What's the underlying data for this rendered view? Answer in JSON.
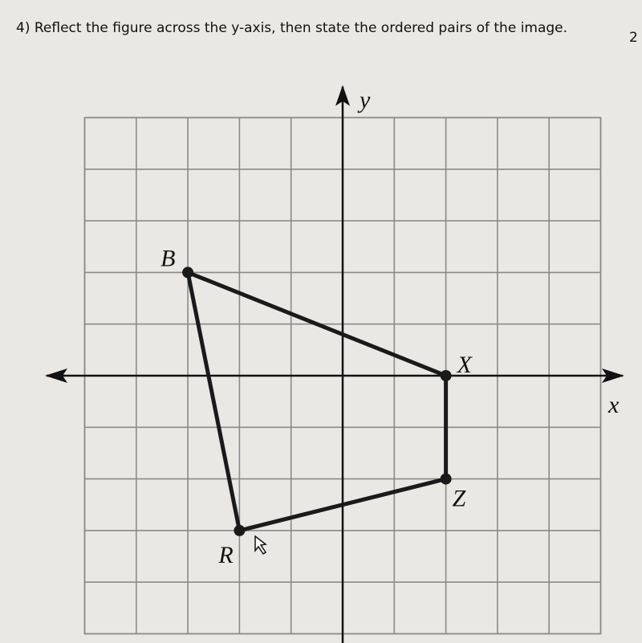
{
  "question": {
    "text": "4) Reflect the figure across the y-axis, then state the ordered pairs of the image.",
    "points_label": "2"
  },
  "graph": {
    "x_axis_label": "x",
    "y_axis_label": "y",
    "figure": [
      {
        "label": "B",
        "x": -3,
        "y": 2
      },
      {
        "label": "X",
        "x": 2,
        "y": 0
      },
      {
        "label": "Z",
        "x": 2,
        "y": -2
      },
      {
        "label": "R",
        "x": -2,
        "y": -3
      }
    ]
  }
}
